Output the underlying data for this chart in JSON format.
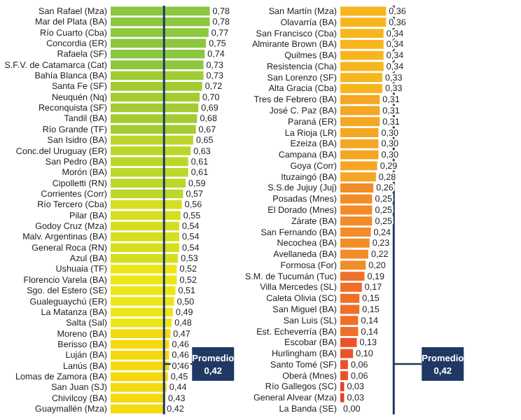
{
  "chart_data": [
    {
      "type": "bar",
      "orientation": "horizontal",
      "tick_labels": "y",
      "categories": [
        "San Rafael (Mza)",
        "Mar del Plata (BA)",
        "Río Cuarto (Cba)",
        "Concordia (ER)",
        "Rafaela (SF)",
        "S.F.V. de Catamarca (Cat)",
        "Bahía Blanca (BA)",
        "Santa Fe (SF)",
        "Neuquén (Nq)",
        "Reconquista (SF)",
        "Tandil (BA)",
        "Río Grande (TF)",
        "San Isidro (BA)",
        "Conc.del Uruguay (ER)",
        "San Pedro (BA)",
        "Morón (BA)",
        "Cipolletti (RN)",
        "Corrientes (Corr)",
        "Río Tercero (Cba)",
        "Pilar (BA)",
        "Godoy Cruz (Mza)",
        "Malv. Argentinas (BA)",
        "General Roca (RN)",
        "Azul (BA)",
        "Ushuaia (TF)",
        "Florencio Varela (BA)",
        "Sgo. del Estero (SE)",
        "Gualeguaychú (ER)",
        "La Matanza (BA)",
        "Salta (Sal)",
        "Moreno (BA)",
        "Berisso (BA)",
        "Luján (BA)",
        "Lanús (BA)",
        "Lomas de Zamora (BA)",
        "San Juan (SJ)",
        "Chivilcoy (BA)",
        "Guaymallén (Mza)"
      ],
      "values": [
        0.78,
        0.78,
        0.77,
        0.75,
        0.74,
        0.73,
        0.73,
        0.72,
        0.7,
        0.69,
        0.68,
        0.67,
        0.65,
        0.63,
        0.61,
        0.61,
        0.59,
        0.57,
        0.56,
        0.55,
        0.54,
        0.54,
        0.54,
        0.53,
        0.52,
        0.52,
        0.51,
        0.5,
        0.49,
        0.48,
        0.47,
        0.46,
        0.46,
        0.46,
        0.45,
        0.44,
        0.43,
        0.42
      ],
      "value_labels": [
        "0,78",
        "0,78",
        "0,77",
        "0,75",
        "0,74",
        "0,73",
        "0,73",
        "0,72",
        "0,70",
        "0,69",
        "0,68",
        "0,67",
        "0,65",
        "0,63",
        "0,61",
        "0,61",
        "0,59",
        "0,57",
        "0,56",
        "0,55",
        "0,54",
        "0,54",
        "0,54",
        "0,53",
        "0,52",
        "0,52",
        "0,51",
        "0,50",
        "0,49",
        "0,48",
        "0,47",
        "0,46",
        "0,46",
        "0,46",
        "0,45",
        "0,44",
        "0,43",
        "0,42"
      ],
      "colors": [
        "#8dc63f",
        "#8dc63f",
        "#8dc63f",
        "#8dc63f",
        "#8dc63f",
        "#8dc63f",
        "#a2cc32",
        "#a2cc32",
        "#a2cc32",
        "#a2cc32",
        "#a2cc32",
        "#a2cc32",
        "#bcd62a",
        "#bcd62a",
        "#bcd62a",
        "#bcd62a",
        "#bcd62a",
        "#bcd62a",
        "#d6df1f",
        "#d6df1f",
        "#d6df1f",
        "#d6df1f",
        "#d6df1f",
        "#d6df1f",
        "#ece619",
        "#ece619",
        "#ece619",
        "#ece619",
        "#ece619",
        "#ece619",
        "#f5d90f",
        "#f5d90f",
        "#f5d90f",
        "#f5d90f",
        "#f5d90f",
        "#f5d90f",
        "#f5d90f",
        "#f5d90f"
      ],
      "ref_lines": [
        {
          "axis": "x",
          "value": 0.42,
          "label": "Promedio 0,42",
          "color": "#1f3864"
        }
      ]
    },
    {
      "type": "bar",
      "orientation": "horizontal",
      "tick_labels": "y",
      "categories": [
        "San Martín (Mza)",
        "Olavarría (BA)",
        "San Francisco (Cba)",
        "Almirante Brown (BA)",
        "Quilmes (BA)",
        "Resistencia (Cha)",
        "San Lorenzo (SF)",
        "Alta Gracia (Cba)",
        "Tres de Febrero (BA)",
        "José C. Paz (BA)",
        "Paraná (ER)",
        "La Rioja (LR)",
        "Ezeiza (BA)",
        "Campana (BA)",
        "Goya (Corr)",
        "Ituzaingó (BA)",
        "S.S.de Jujuy (Juj)",
        "Posadas (Mnes)",
        "El Dorado (Mnes)",
        "Zárate (BA)",
        "San Fernando (BA)",
        "Necochea (BA)",
        "Avellaneda (BA)",
        "Formosa (For)",
        "S.M. de Tucumán (Tuc)",
        "Villa Mercedes (SL)",
        "Caleta Olivia (SC)",
        "San Miguel (BA)",
        "San Luis (SL)",
        "Est. Echeverría (BA)",
        "Escobar (BA)",
        "Hurlingham (BA)",
        "Santo Tomé (SF)",
        "Oberá (Mnes)",
        "Río Gallegos (SC)",
        "General Alvear (Mza)",
        "La Banda (SE)"
      ],
      "values": [
        0.36,
        0.36,
        0.34,
        0.34,
        0.34,
        0.34,
        0.33,
        0.33,
        0.31,
        0.31,
        0.31,
        0.3,
        0.3,
        0.3,
        0.29,
        0.28,
        0.26,
        0.25,
        0.25,
        0.25,
        0.24,
        0.23,
        0.22,
        0.2,
        0.19,
        0.17,
        0.15,
        0.15,
        0.14,
        0.14,
        0.13,
        0.1,
        0.06,
        0.06,
        0.03,
        0.03,
        0.0
      ],
      "value_labels": [
        "0,36",
        "0,36",
        "0,34",
        "0,34",
        "0,34",
        "0,34",
        "0,33",
        "0,33",
        "0,31",
        "0,31",
        "0,31",
        "0,30",
        "0,30",
        "0,30",
        "0,29",
        "0,28",
        "0,26",
        "0,25",
        "0,25",
        "0,25",
        "0,24",
        "0,23",
        "0,22",
        "0,20",
        "0,19",
        "0,17",
        "0,15",
        "0,15",
        "0,14",
        "0,14",
        "0,13",
        "0,10",
        "0,06",
        "0,06",
        "0,03",
        "0,03",
        "0,00"
      ],
      "colors": [
        "#f7b51e",
        "#f7b51e",
        "#f7b51e",
        "#f7b51e",
        "#f7b51e",
        "#f7b51e",
        "#f7b51e",
        "#f7b51e",
        "#f5a623",
        "#f5a623",
        "#f5a623",
        "#f5a623",
        "#f5a623",
        "#f5a623",
        "#f5a623",
        "#f5a623",
        "#f28c28",
        "#f28c28",
        "#f28c28",
        "#f28c28",
        "#f28c28",
        "#f28c28",
        "#f28c28",
        "#f28c28",
        "#ef6f2a",
        "#ef6f2a",
        "#ef6f2a",
        "#ef6f2a",
        "#ef6f2a",
        "#ef6f2a",
        "#ea532a",
        "#ea532a",
        "#ea532a",
        "#ea532a",
        "#e63c2a",
        "#e63c2a",
        "#ff0000"
      ],
      "ref_lines": [
        {
          "axis": "x",
          "value": 0.42,
          "label": "Promedio 0,42",
          "color": "#1f3864"
        }
      ]
    }
  ]
}
